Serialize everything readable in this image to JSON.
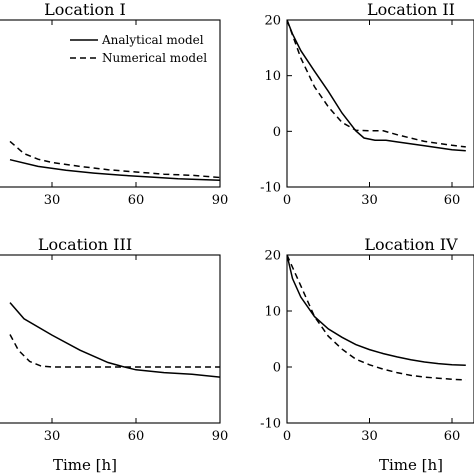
{
  "chart_data": [
    {
      "type": "line",
      "title": "Location I",
      "xlabel": "",
      "ylabel": "",
      "xticks": [
        30,
        60,
        90
      ],
      "xlim": [
        0,
        90
      ],
      "ylim": [
        -10,
        20
      ],
      "legend": {
        "placement": "top-right",
        "entries": [
          "Analytical model",
          "Numerical model"
        ]
      },
      "series": [
        {
          "name": "Analytical model",
          "style": "solid",
          "x": [
            15,
            25,
            35,
            45,
            55,
            65,
            75,
            90
          ],
          "y": [
            -5.1,
            -6.3,
            -7.0,
            -7.5,
            -7.9,
            -8.2,
            -8.5,
            -8.8
          ]
        },
        {
          "name": "Numerical model",
          "style": "dashed",
          "x": [
            15,
            20,
            25,
            30,
            40,
            50,
            60,
            70,
            80,
            90
          ],
          "y": [
            -1.8,
            -4.0,
            -5.0,
            -5.6,
            -6.3,
            -6.9,
            -7.3,
            -7.7,
            -7.9,
            -8.3
          ]
        }
      ]
    },
    {
      "type": "line",
      "title": "Location II",
      "xlabel": "",
      "ylabel": "",
      "xticks": [
        0,
        30,
        60
      ],
      "yticks": [
        -10,
        0,
        10,
        20
      ],
      "xlim": [
        0,
        65
      ],
      "ylim": [
        -10,
        20
      ],
      "series": [
        {
          "name": "Analytical model",
          "style": "solid",
          "x": [
            0,
            2,
            5,
            10,
            15,
            20,
            25,
            28,
            32,
            36,
            40,
            50,
            60,
            65
          ],
          "y": [
            20,
            17.5,
            14.5,
            10.8,
            7.2,
            3.3,
            0.1,
            -1.2,
            -1.6,
            -1.6,
            -1.9,
            -2.6,
            -3.3,
            -3.5
          ]
        },
        {
          "name": "Numerical model",
          "style": "dashed",
          "x": [
            0,
            5,
            10,
            15,
            20,
            25,
            30,
            35,
            40,
            50,
            60,
            65
          ],
          "y": [
            20,
            13.2,
            8.0,
            4.4,
            1.6,
            0.2,
            0.1,
            0.1,
            -0.6,
            -1.8,
            -2.5,
            -2.8
          ]
        }
      ]
    },
    {
      "type": "line",
      "title": "Location III",
      "xlabel": "Time [h]",
      "ylabel": "",
      "xticks": [
        30,
        60,
        90
      ],
      "xlim": [
        0,
        90
      ],
      "ylim": [
        -10,
        20
      ],
      "series": [
        {
          "name": "Analytical model",
          "style": "solid",
          "x": [
            15,
            20,
            30,
            40,
            50,
            55,
            60,
            70,
            80,
            90
          ],
          "y": [
            11.5,
            8.6,
            5.7,
            3.0,
            0.8,
            0.1,
            -0.5,
            -1.0,
            -1.3,
            -1.8
          ]
        },
        {
          "name": "Numerical model",
          "style": "dashed",
          "x": [
            15,
            18,
            22,
            26,
            30,
            40,
            50,
            60,
            70,
            80,
            90
          ],
          "y": [
            5.8,
            3.0,
            1.0,
            0.2,
            0,
            0,
            0,
            0,
            0,
            0,
            0
          ]
        }
      ]
    },
    {
      "type": "line",
      "title": "Location IV",
      "xlabel": "Time [h]",
      "ylabel": "",
      "xticks": [
        0,
        30,
        60
      ],
      "yticks": [
        -10,
        0,
        10,
        20
      ],
      "xlim": [
        0,
        65
      ],
      "ylim": [
        -10,
        20
      ],
      "series": [
        {
          "name": "Analytical model",
          "style": "solid",
          "x": [
            0,
            2,
            5,
            10,
            15,
            20,
            25,
            30,
            35,
            40,
            45,
            50,
            55,
            60,
            65
          ],
          "y": [
            20,
            15.8,
            12.5,
            9.0,
            6.8,
            5.3,
            4.0,
            3.1,
            2.4,
            1.8,
            1.3,
            0.9,
            0.6,
            0.4,
            0.3
          ]
        },
        {
          "name": "Numerical model",
          "style": "dashed",
          "x": [
            0,
            5,
            10,
            15,
            20,
            25,
            30,
            35,
            40,
            45,
            50,
            55,
            60,
            65
          ],
          "y": [
            20,
            14.5,
            9.0,
            5.5,
            3.2,
            1.4,
            0.4,
            -0.4,
            -1.0,
            -1.5,
            -1.8,
            -2.0,
            -2.2,
            -2.3
          ]
        }
      ]
    }
  ]
}
